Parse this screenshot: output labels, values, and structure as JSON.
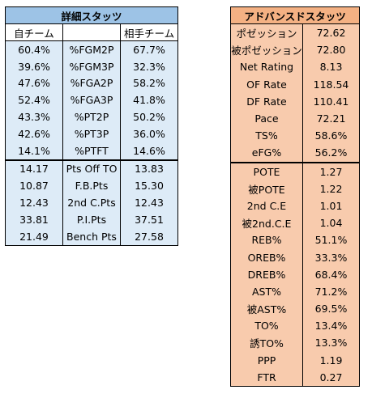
{
  "detail": {
    "title": "詳細スタッツ",
    "headers": [
      "自チーム",
      "",
      "相手チーム"
    ],
    "rows": [
      {
        "own": "60.4%",
        "label": "%FGM2P",
        "opp": "67.7%"
      },
      {
        "own": "39.6%",
        "label": "%FGM3P",
        "opp": "32.3%"
      },
      {
        "own": "47.6%",
        "label": "%FGA2P",
        "opp": "58.2%"
      },
      {
        "own": "52.4%",
        "label": "%FGA3P",
        "opp": "41.8%"
      },
      {
        "own": "43.3%",
        "label": "%PT2P",
        "opp": "50.2%"
      },
      {
        "own": "42.6%",
        "label": "%PT3P",
        "opp": "36.0%"
      },
      {
        "own": "14.1%",
        "label": "%PTFT",
        "opp": "14.6%"
      },
      {
        "own": "14.17",
        "label": "Pts Off TO",
        "opp": "13.83"
      },
      {
        "own": "10.87",
        "label": "F.B.Pts",
        "opp": "15.30"
      },
      {
        "own": "12.43",
        "label": "2nd C.Pts",
        "opp": "12.43"
      },
      {
        "own": "33.81",
        "label": "P.I.Pts",
        "opp": "37.51"
      },
      {
        "own": "21.49",
        "label": "Bench Pts",
        "opp": "27.58"
      }
    ]
  },
  "advanced": {
    "title": "アドバンスドスタッツ",
    "rows": [
      {
        "label": "ポゼッション",
        "value": "72.62"
      },
      {
        "label": "被ポゼッション",
        "value": "72.80"
      },
      {
        "label": "Net Rating",
        "value": "8.13"
      },
      {
        "label": "OF Rate",
        "value": "118.54"
      },
      {
        "label": "DF Rate",
        "value": "110.41"
      },
      {
        "label": "Pace",
        "value": "72.21"
      },
      {
        "label": "TS%",
        "value": "58.6%"
      },
      {
        "label": "eFG%",
        "value": "56.2%"
      },
      {
        "label": "POTE",
        "value": "1.27"
      },
      {
        "label": "被POTE",
        "value": "1.22"
      },
      {
        "label": "2nd C.E",
        "value": "1.01"
      },
      {
        "label": "被2nd.C.E",
        "value": "1.04"
      },
      {
        "label": "REB%",
        "value": "51.1%"
      },
      {
        "label": "OREB%",
        "value": "33.3%"
      },
      {
        "label": "DREB%",
        "value": "68.4%"
      },
      {
        "label": "AST%",
        "value": "71.2%"
      },
      {
        "label": "被AST%",
        "value": "69.5%"
      },
      {
        "label": "TO%",
        "value": "13.4%"
      },
      {
        "label": "誘TO%",
        "value": "13.3%"
      },
      {
        "label": "PPP",
        "value": "1.19"
      },
      {
        "label": "FTR",
        "value": "0.27"
      }
    ]
  }
}
